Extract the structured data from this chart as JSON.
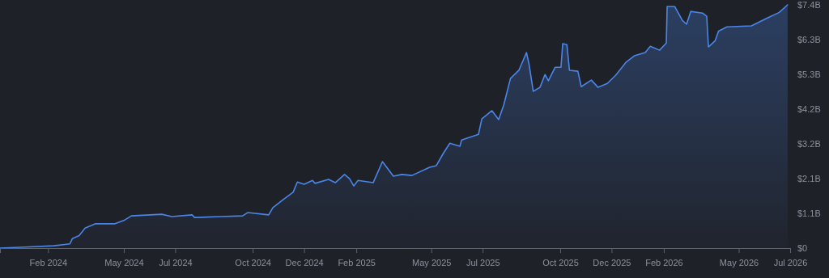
{
  "chart_data": {
    "type": "area",
    "x": [
      "2023-12-06",
      "2024-01-04",
      "2024-02-08",
      "2024-02-27",
      "2024-03-01",
      "2024-03-09",
      "2024-03-16",
      "2024-03-28",
      "2024-04-20",
      "2024-05-01",
      "2024-05-10",
      "2024-06-15",
      "2024-06-27",
      "2024-07-21",
      "2024-07-24",
      "2024-08-24",
      "2024-09-19",
      "2024-09-25",
      "2024-10-20",
      "2024-10-25",
      "2024-11-06",
      "2024-11-18",
      "2024-11-23",
      "2024-12-01",
      "2024-12-11",
      "2024-12-14",
      "2024-12-30",
      "2025-01-07",
      "2025-01-18",
      "2025-01-24",
      "2025-01-29",
      "2025-02-03",
      "2025-02-21",
      "2025-03-04",
      "2025-03-10",
      "2025-03-17",
      "2025-03-27",
      "2025-04-08",
      "2025-04-29",
      "2025-05-07",
      "2025-05-15",
      "2025-05-23",
      "2025-06-04",
      "2025-06-06",
      "2025-06-26",
      "2025-06-30",
      "2025-07-12",
      "2025-07-20",
      "2025-07-26",
      "2025-08-03",
      "2025-08-13",
      "2025-08-22",
      "2025-08-25",
      "2025-08-30",
      "2025-09-07",
      "2025-09-13",
      "2025-09-17",
      "2025-09-25",
      "2025-10-02",
      "2025-10-04",
      "2025-10-09",
      "2025-10-12",
      "2025-10-22",
      "2025-10-26",
      "2025-11-07",
      "2025-11-15",
      "2025-11-26",
      "2025-12-06",
      "2025-12-18",
      "2025-12-28",
      "2026-01-10",
      "2026-01-16",
      "2026-01-27",
      "2026-02-04",
      "2026-02-05",
      "2026-02-14",
      "2026-02-23",
      "2026-02-28",
      "2026-03-05",
      "2026-03-19",
      "2026-03-24",
      "2026-03-26",
      "2026-04-03",
      "2026-04-07",
      "2026-04-17",
      "2026-05-16",
      "2026-06-04",
      "2026-06-18",
      "2026-06-28"
    ],
    "series": [
      {
        "color": "#4a86e8",
        "values": [
          0,
          0.03,
          0.07,
          0.13,
          0.29,
          0.38,
          0.61,
          0.74,
          0.74,
          0.84,
          0.98,
          1.03,
          0.96,
          1.01,
          0.93,
          0.96,
          0.98,
          1.08,
          1.01,
          1.23,
          1.47,
          1.7,
          2.01,
          1.94,
          2.06,
          1.97,
          2.09,
          1.99,
          2.24,
          2.11,
          1.89,
          2.06,
          1.99,
          2.63,
          2.43,
          2.19,
          2.24,
          2.21,
          2.46,
          2.51,
          2.87,
          3.19,
          3.1,
          3.29,
          3.46,
          3.93,
          4.18,
          3.91,
          4.35,
          5.16,
          5.41,
          5.95,
          5.6,
          4.77,
          4.89,
          5.28,
          5.09,
          5.5,
          5.5,
          6.22,
          6.19,
          5.41,
          5.38,
          4.91,
          5.11,
          4.89,
          5.01,
          5.26,
          5.65,
          5.85,
          5.95,
          6.14,
          6.02,
          6.24,
          7.35,
          7.35,
          6.93,
          6.81,
          7.2,
          7.15,
          7.05,
          6.12,
          6.31,
          6.6,
          6.73,
          6.76,
          7.0,
          7.17,
          7.4
        ]
      }
    ],
    "xlim": [
      "2023-12-06",
      "2026-07-01"
    ],
    "xticks": [
      {
        "value": "2024-02",
        "label": "Feb 2024"
      },
      {
        "value": "2024-05",
        "label": "May 2024"
      },
      {
        "value": "2024-07",
        "label": "Jul 2024"
      },
      {
        "value": "2024-10",
        "label": "Oct 2024"
      },
      {
        "value": "2024-12",
        "label": "Dec 2024"
      },
      {
        "value": "2025-02",
        "label": "Feb 2025"
      },
      {
        "value": "2025-05",
        "label": "May 2025"
      },
      {
        "value": "2025-07",
        "label": "Jul 2025"
      },
      {
        "value": "2025-10",
        "label": "Oct 2025"
      },
      {
        "value": "2025-12",
        "label": "Dec 2025"
      },
      {
        "value": "2026-02",
        "label": "Feb 2026"
      },
      {
        "value": "2026-05",
        "label": "May 2026"
      },
      {
        "value": "2026-07",
        "label": "Jul 2026"
      }
    ],
    "ylim": [
      0,
      7.4
    ],
    "yticks": [
      {
        "value": 0,
        "label": "$0"
      },
      {
        "value": 1.057,
        "label": "$1.1B"
      },
      {
        "value": 2.114,
        "label": "$2.1B"
      },
      {
        "value": 3.171,
        "label": "$3.2B"
      },
      {
        "value": 4.229,
        "label": "$4.2B"
      },
      {
        "value": 5.286,
        "label": "$5.3B"
      },
      {
        "value": 6.343,
        "label": "$6.3B"
      },
      {
        "value": 7.4,
        "label": "$7.4B"
      }
    ],
    "grid": false
  }
}
